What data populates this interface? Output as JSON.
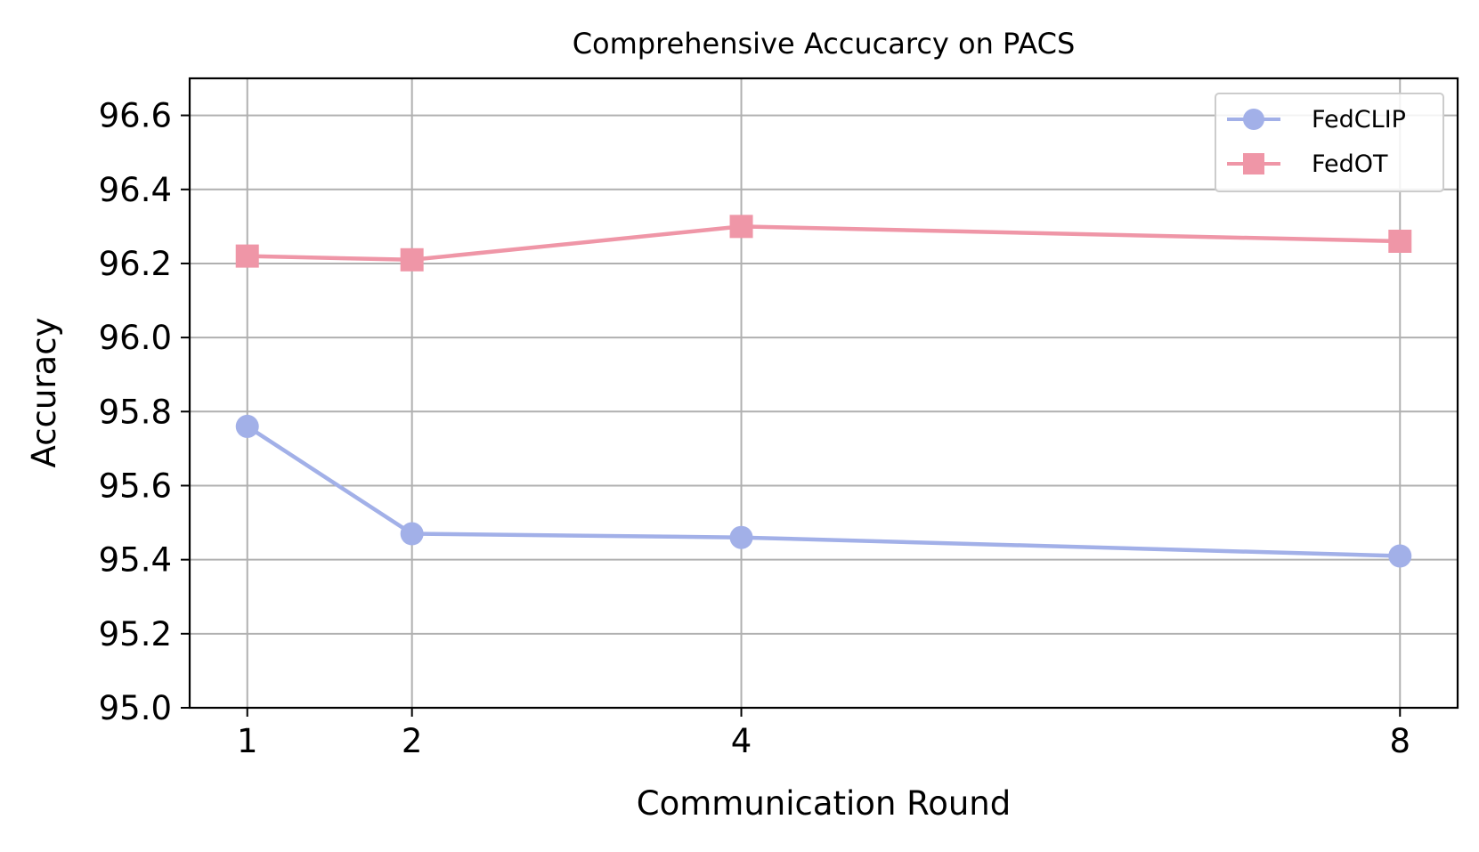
{
  "chart_data": {
    "type": "line",
    "title": "Comprehensive Accucarcy on PACS",
    "xlabel": "Communication Round",
    "ylabel": "Accuracy",
    "x": [
      1,
      2,
      4,
      8
    ],
    "x_tick_labels": [
      "1",
      "2",
      "4",
      "8"
    ],
    "ylim": [
      95.0,
      96.7
    ],
    "y_ticks": [
      95.0,
      95.2,
      95.4,
      95.6,
      95.8,
      96.0,
      96.2,
      96.4,
      96.6
    ],
    "y_tick_labels": [
      "95.0",
      "95.2",
      "95.4",
      "95.6",
      "95.8",
      "96.0",
      "96.2",
      "96.4",
      "96.6"
    ],
    "grid": true,
    "legend_position": "top-right",
    "series": [
      {
        "name": "FedCLIP",
        "values": [
          95.76,
          95.47,
          95.46,
          95.41
        ],
        "color": "#a2b0e8",
        "marker": "circle"
      },
      {
        "name": "FedOT",
        "values": [
          96.22,
          96.21,
          96.3,
          96.26
        ],
        "color": "#ef96a7",
        "marker": "square"
      }
    ]
  }
}
